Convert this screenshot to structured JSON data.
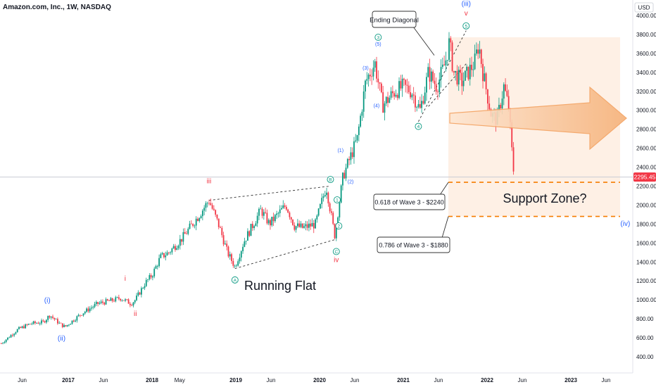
{
  "title": "Amazon.com, Inc., 1W, NASDAQ",
  "currency": "USD",
  "price_label": "2295.45",
  "price_label_color": "#f23645",
  "colors": {
    "up": "#089981",
    "down": "#f23645",
    "impulse_label": "#2962ff",
    "corrective_label": "#f23645",
    "circle_label": "#089981",
    "zone_line": "#f57c00",
    "zone_fill": "#fdebdc",
    "arrow_fill": "#f9c08f"
  },
  "chart_data": {
    "type": "candlestick",
    "title": "Amazon.com, Inc., 1W, NASDAQ",
    "ylabel": "USD",
    "ylim": [
      250,
      4100
    ],
    "y_ticks": [
      "4000.00",
      "3800.00",
      "3600.00",
      "3400.00",
      "3200.00",
      "3000.00",
      "2800.00",
      "2600.00",
      "2400.00",
      "2200.00",
      "2000.00",
      "1800.00",
      "1600.00",
      "1400.00",
      "1200.00",
      "1000.00",
      "800.00",
      "600.00",
      "400.00"
    ],
    "x_ticks": [
      "Jun",
      "2017",
      "Jun",
      "2018",
      "May",
      "2019",
      "Jun",
      "2020",
      "Jun",
      "2021",
      "Jun",
      "2022",
      "Jun",
      "2023",
      "Jun"
    ],
    "path_points": [
      {
        "t": 2016.2,
        "p": 540
      },
      {
        "t": 2016.4,
        "p": 690
      },
      {
        "t": 2016.55,
        "p": 750
      },
      {
        "t": 2016.7,
        "p": 765
      },
      {
        "t": 2016.78,
        "p": 840
      },
      {
        "t": 2016.9,
        "p": 745
      },
      {
        "t": 2016.96,
        "p": 715
      },
      {
        "t": 2017.15,
        "p": 850
      },
      {
        "t": 2017.35,
        "p": 960
      },
      {
        "t": 2017.55,
        "p": 1000
      },
      {
        "t": 2017.62,
        "p": 1020
      },
      {
        "t": 2017.75,
        "p": 960
      },
      {
        "t": 2017.8,
        "p": 1000
      },
      {
        "t": 2017.92,
        "p": 1180
      },
      {
        "t": 2018.0,
        "p": 1260
      },
      {
        "t": 2018.1,
        "p": 1450
      },
      {
        "t": 2018.2,
        "p": 1500
      },
      {
        "t": 2018.35,
        "p": 1640
      },
      {
        "t": 2018.55,
        "p": 1880
      },
      {
        "t": 2018.68,
        "p": 2050
      },
      {
        "t": 2018.8,
        "p": 1780
      },
      {
        "t": 2018.9,
        "p": 1500
      },
      {
        "t": 2018.99,
        "p": 1350
      },
      {
        "t": 2019.1,
        "p": 1620
      },
      {
        "t": 2019.3,
        "p": 1950
      },
      {
        "t": 2019.4,
        "p": 1800
      },
      {
        "t": 2019.5,
        "p": 1900
      },
      {
        "t": 2019.6,
        "p": 2000
      },
      {
        "t": 2019.7,
        "p": 1780
      },
      {
        "t": 2019.8,
        "p": 1760
      },
      {
        "t": 2019.95,
        "p": 1800
      },
      {
        "t": 2020.08,
        "p": 2200
      },
      {
        "t": 2020.18,
        "p": 1680
      },
      {
        "t": 2020.28,
        "p": 2300
      },
      {
        "t": 2020.45,
        "p": 2700
      },
      {
        "t": 2020.55,
        "p": 3300
      },
      {
        "t": 2020.66,
        "p": 3500
      },
      {
        "t": 2020.75,
        "p": 3050
      },
      {
        "t": 2020.9,
        "p": 3200
      },
      {
        "t": 2021.0,
        "p": 3250
      },
      {
        "t": 2021.1,
        "p": 3200
      },
      {
        "t": 2021.2,
        "p": 3000
      },
      {
        "t": 2021.3,
        "p": 3400
      },
      {
        "t": 2021.4,
        "p": 3250
      },
      {
        "t": 2021.5,
        "p": 3500
      },
      {
        "t": 2021.55,
        "p": 3720
      },
      {
        "t": 2021.6,
        "p": 3400
      },
      {
        "t": 2021.7,
        "p": 3300
      },
      {
        "t": 2021.85,
        "p": 3500
      },
      {
        "t": 2021.9,
        "p": 3700
      },
      {
        "t": 2021.95,
        "p": 3400
      },
      {
        "t": 2022.05,
        "p": 2950
      },
      {
        "t": 2022.12,
        "p": 2900
      },
      {
        "t": 2022.2,
        "p": 3250
      },
      {
        "t": 2022.26,
        "p": 3020
      },
      {
        "t": 2022.31,
        "p": 2400
      },
      {
        "t": 2022.33,
        "p": 2295
      }
    ],
    "annotations": {
      "ending_diagonal": "Ending Diagonal",
      "running_flat": "Running Flat",
      "support_zone": "Support Zone?",
      "fib_618": "0.618 of Wave 3 - $2240",
      "fib_786": "0.786 of Wave 3 - $1880"
    },
    "support_zone": [
      1880,
      2240
    ],
    "wave_labels": [
      {
        "text": "(i)",
        "color": "impulse",
        "t": 2016.75,
        "p": 970
      },
      {
        "text": "(ii)",
        "color": "impulse",
        "t": 2016.92,
        "p": 570
      },
      {
        "text": "i",
        "color": "corrective",
        "t": 2017.68,
        "p": 1200
      },
      {
        "text": "ii",
        "color": "corrective",
        "t": 2017.8,
        "p": 830
      },
      {
        "text": "iii",
        "color": "corrective",
        "t": 2018.68,
        "p": 2230
      },
      {
        "text": "iv",
        "color": "corrective",
        "t": 2020.2,
        "p": 1400
      },
      {
        "text": "v",
        "color": "corrective",
        "t": 2021.75,
        "p": 4000
      },
      {
        "text": "(iii)",
        "color": "impulse",
        "t": 2021.75,
        "p": 4100
      },
      {
        "text": "(iv)",
        "color": "impulse",
        "t": 2023.65,
        "p": 1780
      },
      {
        "text": "(1)",
        "color": "impulse",
        "t": 2020.25,
        "p": 2560
      },
      {
        "text": "(2)",
        "color": "impulse",
        "t": 2020.37,
        "p": 2230
      },
      {
        "text": "(3)",
        "color": "impulse",
        "t": 2020.55,
        "p": 3430
      },
      {
        "text": "(4)",
        "color": "impulse",
        "t": 2020.68,
        "p": 3030
      },
      {
        "text": "(5)",
        "color": "impulse",
        "t": 2020.7,
        "p": 3680
      }
    ],
    "circle_labels": [
      {
        "text": "A",
        "t": 2018.99,
        "p": 1210
      },
      {
        "text": "B",
        "t": 2020.13,
        "p": 2270
      },
      {
        "text": "C",
        "t": 2020.2,
        "p": 1510
      },
      {
        "text": "1",
        "t": 2020.21,
        "p": 2055
      },
      {
        "text": "2",
        "t": 2020.23,
        "p": 1780
      },
      {
        "text": "3",
        "t": 2020.7,
        "p": 3770
      },
      {
        "text": "4",
        "t": 2021.18,
        "p": 2830
      },
      {
        "text": "5",
        "t": 2021.75,
        "p": 3890
      }
    ]
  }
}
